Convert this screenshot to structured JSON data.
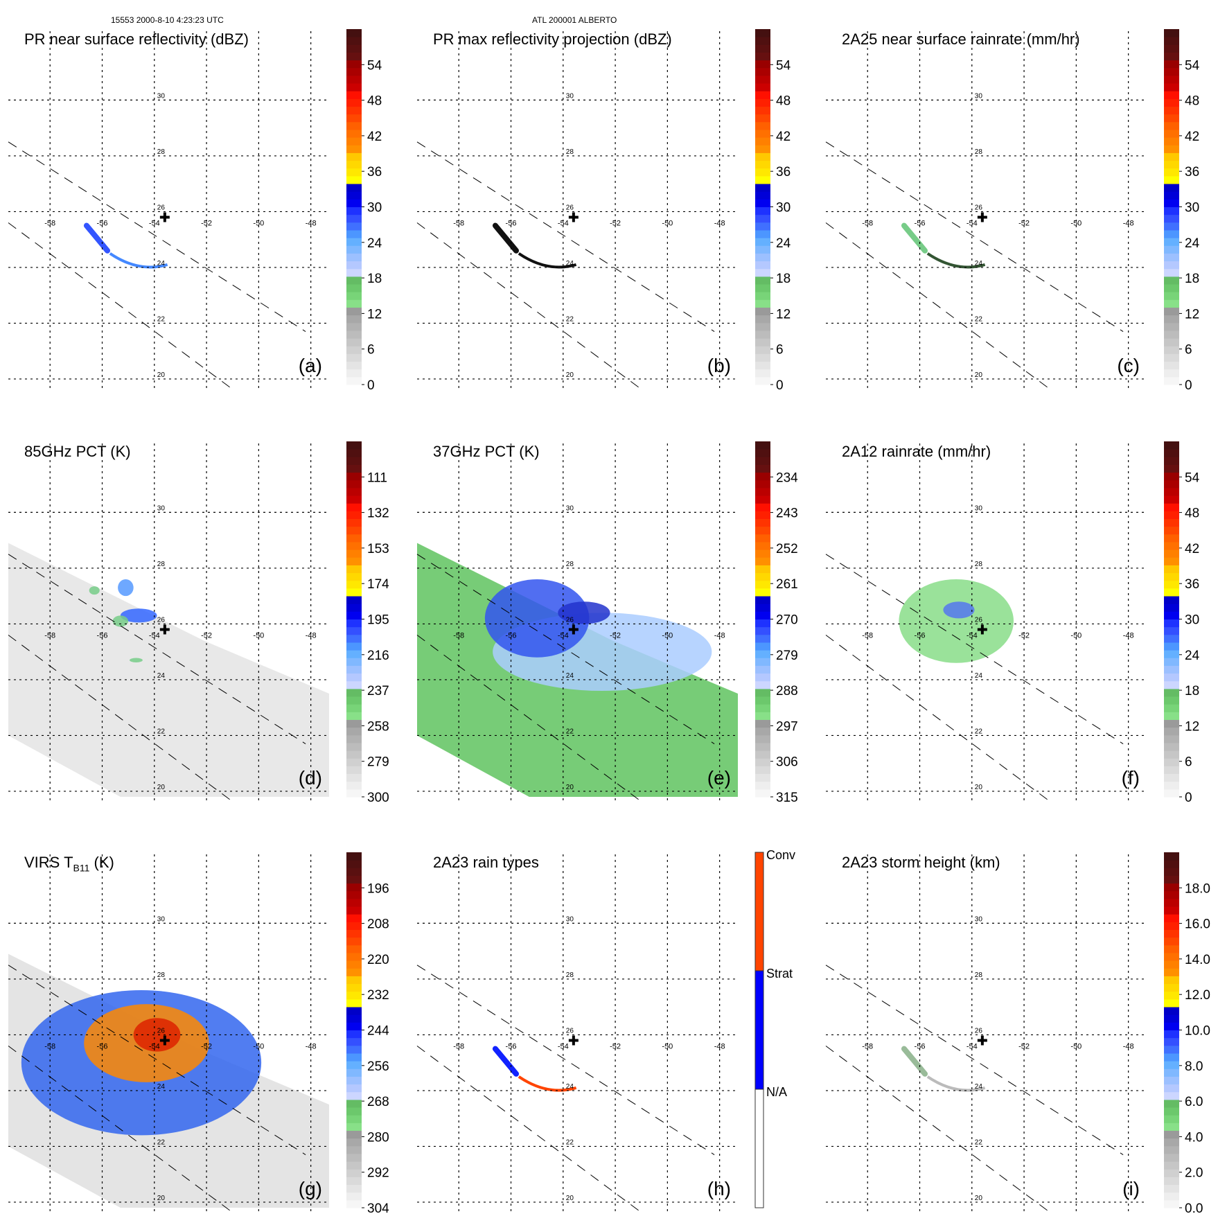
{
  "header": {
    "orbit_time": "15553 2000-8-10 4:23:23 UTC",
    "storm": "ATL 200001 ALBERTO"
  },
  "chart_data": [
    {
      "id": "a",
      "type": "heatmap",
      "panel_label": "(a)",
      "title": "PR near surface reflectivity (dBZ)",
      "colorbar": {
        "kind": "continuous",
        "ticks": [
          "0",
          "6",
          "12",
          "18",
          "24",
          "30",
          "36",
          "42",
          "48",
          "54"
        ],
        "range": [
          0,
          60
        ]
      },
      "swath": "pr",
      "features": [
        {
          "kind": "band",
          "lon0": -56.6,
          "lat0": 25.5,
          "lon1": -55.8,
          "lat1": 24.6,
          "color": "#3355ff"
        },
        {
          "kind": "arc",
          "lon0": -55.7,
          "lat0": 24.5,
          "lon1": -53.5,
          "lat1": 24.1,
          "color": "#4488ff"
        }
      ]
    },
    {
      "id": "b",
      "type": "heatmap",
      "panel_label": "(b)",
      "title": "PR max reflectivity projection (dBZ)",
      "colorbar": {
        "kind": "continuous",
        "ticks": [
          "0",
          "6",
          "12",
          "18",
          "24",
          "30",
          "36",
          "42",
          "48",
          "54"
        ],
        "range": [
          0,
          60
        ]
      },
      "swath": "pr",
      "features": [
        {
          "kind": "band",
          "lon0": -56.6,
          "lat0": 25.5,
          "lon1": -55.8,
          "lat1": 24.6,
          "color": "#111111"
        },
        {
          "kind": "arc",
          "lon0": -55.7,
          "lat0": 24.5,
          "lon1": -53.5,
          "lat1": 24.1,
          "color": "#111111"
        }
      ]
    },
    {
      "id": "c",
      "type": "heatmap",
      "panel_label": "(c)",
      "title": "2A25 near surface rainrate (mm/hr)",
      "colorbar": {
        "kind": "continuous",
        "ticks": [
          "0",
          "6",
          "12",
          "18",
          "24",
          "30",
          "36",
          "42",
          "48",
          "54"
        ],
        "range": [
          0,
          60
        ]
      },
      "swath": "pr",
      "features": [
        {
          "kind": "band",
          "lon0": -56.6,
          "lat0": 25.5,
          "lon1": -55.8,
          "lat1": 24.6,
          "color": "#77cc88"
        },
        {
          "kind": "arc",
          "lon0": -55.7,
          "lat0": 24.5,
          "lon1": -53.5,
          "lat1": 24.1,
          "color": "#335533"
        }
      ]
    },
    {
      "id": "d",
      "type": "heatmap",
      "panel_label": "(d)",
      "title": "85GHz PCT (K)",
      "colorbar": {
        "kind": "continuous",
        "ticks": [
          "300",
          "279",
          "258",
          "237",
          "216",
          "195",
          "174",
          "153",
          "132",
          "111"
        ],
        "range": [
          300,
          90
        ]
      },
      "swath": "tmi",
      "swath_fill": "#e8e8e8",
      "features": [
        {
          "kind": "blob",
          "lon": -54.6,
          "lat": 26.3,
          "rx": 0.7,
          "ry": 0.25,
          "color": "#3366ff"
        },
        {
          "kind": "blob",
          "lon": -55.3,
          "lat": 26.1,
          "rx": 0.3,
          "ry": 0.2,
          "color": "#77cc88"
        },
        {
          "kind": "blob",
          "lon": -55.1,
          "lat": 27.3,
          "rx": 0.3,
          "ry": 0.3,
          "color": "#5599ff"
        },
        {
          "kind": "blob",
          "lon": -56.3,
          "lat": 27.2,
          "rx": 0.2,
          "ry": 0.15,
          "color": "#77cc88"
        },
        {
          "kind": "blob",
          "lon": -54.7,
          "lat": 24.7,
          "rx": 0.25,
          "ry": 0.08,
          "color": "#77cc88"
        }
      ]
    },
    {
      "id": "e",
      "type": "heatmap",
      "panel_label": "(e)",
      "title": "37GHz PCT (K)",
      "colorbar": {
        "kind": "continuous",
        "ticks": [
          "315",
          "306",
          "297",
          "288",
          "279",
          "270",
          "261",
          "252",
          "243",
          "234"
        ],
        "range": [
          315,
          225
        ]
      },
      "swath": "tmi",
      "swath_fill": "#77cc77",
      "features": [
        {
          "kind": "blob",
          "lon": -52.5,
          "lat": 25.0,
          "rx": 4.2,
          "ry": 1.4,
          "color": "#aaccff"
        },
        {
          "kind": "blob",
          "lon": -55.0,
          "lat": 26.2,
          "rx": 2.0,
          "ry": 1.4,
          "color": "#3355ee"
        },
        {
          "kind": "blob",
          "lon": -53.2,
          "lat": 26.4,
          "rx": 1.0,
          "ry": 0.4,
          "color": "#2233cc"
        }
      ]
    },
    {
      "id": "f",
      "type": "heatmap",
      "panel_label": "(f)",
      "title": "2A12 rainrate (mm/hr)",
      "colorbar": {
        "kind": "continuous",
        "ticks": [
          "0",
          "6",
          "12",
          "18",
          "24",
          "30",
          "36",
          "42",
          "48",
          "54"
        ],
        "range": [
          0,
          60
        ]
      },
      "swath": "none",
      "features": [
        {
          "kind": "blob",
          "lon": -54.6,
          "lat": 26.1,
          "rx": 2.2,
          "ry": 1.5,
          "color": "#88dd88"
        },
        {
          "kind": "blob",
          "lon": -54.5,
          "lat": 26.5,
          "rx": 0.6,
          "ry": 0.3,
          "color": "#5577ee"
        }
      ]
    },
    {
      "id": "g",
      "type": "heatmap",
      "panel_label": "(g)",
      "title": "VIRS T",
      "title_sub": "B11",
      "title_suffix": " (K)",
      "colorbar": {
        "kind": "continuous",
        "ticks": [
          "304",
          "292",
          "280",
          "268",
          "256",
          "244",
          "232",
          "220",
          "208",
          "196"
        ],
        "range": [
          304,
          184
        ]
      },
      "swath": "tmi",
      "swath_fill": "#e4e4e4",
      "features": [
        {
          "kind": "blob",
          "lon": -54.5,
          "lat": 25.0,
          "rx": 4.6,
          "ry": 2.6,
          "color": "#3366ee"
        },
        {
          "kind": "blob",
          "lon": -54.3,
          "lat": 25.7,
          "rx": 2.4,
          "ry": 1.4,
          "color": "#ff8800"
        },
        {
          "kind": "blob",
          "lon": -53.9,
          "lat": 26.0,
          "rx": 0.9,
          "ry": 0.6,
          "color": "#dd2200"
        }
      ]
    },
    {
      "id": "h",
      "type": "heatmap",
      "panel_label": "(h)",
      "title": "2A23 rain types",
      "colorbar": {
        "kind": "categorical",
        "labels": [
          "N/A",
          "Strat",
          "Conv"
        ],
        "colors": [
          "#ffffff",
          "#0000ff",
          "#ff4400"
        ]
      },
      "swath": "pr",
      "features": [
        {
          "kind": "band",
          "lon0": -56.6,
          "lat0": 25.5,
          "lon1": -55.8,
          "lat1": 24.6,
          "color": "#1122ff"
        },
        {
          "kind": "arc",
          "lon0": -55.7,
          "lat0": 24.5,
          "lon1": -53.5,
          "lat1": 24.1,
          "color": "#ff4400"
        }
      ]
    },
    {
      "id": "i",
      "type": "heatmap",
      "panel_label": "(i)",
      "title": "2A23 storm height (km)",
      "colorbar": {
        "kind": "continuous",
        "ticks": [
          "0.0",
          "2.0",
          "4.0",
          "6.0",
          "8.0",
          "10.0",
          "12.0",
          "14.0",
          "16.0",
          "18.0"
        ],
        "range": [
          0,
          20
        ]
      },
      "swath": "pr",
      "features": [
        {
          "kind": "band",
          "lon0": -56.6,
          "lat0": 25.5,
          "lon1": -55.8,
          "lat1": 24.6,
          "color": "#99bb99"
        },
        {
          "kind": "arc",
          "lon0": -55.7,
          "lat0": 24.5,
          "lon1": -53.5,
          "lat1": 24.1,
          "color": "#bbbbbb"
        }
      ]
    }
  ],
  "map": {
    "lon_ticks": [
      -58,
      -56,
      -54,
      -52,
      -50,
      -48
    ],
    "lat_ticks": [
      20,
      22,
      24,
      26,
      28,
      30
    ],
    "lon_range": [
      -59.6,
      -47.3
    ],
    "lat_range": [
      19.8,
      31.6
    ],
    "storm_center": {
      "lon": -53.6,
      "lat": 25.8
    }
  },
  "colorbar_palette": [
    "#f6f6f6",
    "#eeeeee",
    "#e4e4e4",
    "#dadada",
    "#d0d0d0",
    "#c6c6c6",
    "#bcbcbc",
    "#b2b2b2",
    "#a8a8a8",
    "#9a9a9a",
    "#88e088",
    "#78d478",
    "#6cc86c",
    "#64bc64",
    "#ccd6ff",
    "#b4c8ff",
    "#9cc0ff",
    "#80b8ff",
    "#64b0ff",
    "#4c96ff",
    "#4070ff",
    "#3450ff",
    "#1e32ff",
    "#0000f0",
    "#0000d8",
    "#0000c8",
    "#ffff00",
    "#ffe800",
    "#ffd800",
    "#ffc800",
    "#ff9000",
    "#ff8000",
    "#ff7000",
    "#ff6000",
    "#ff4800",
    "#ff3400",
    "#ff2000",
    "#ff1000",
    "#cc0000",
    "#bb0000",
    "#aa0000",
    "#990000",
    "#661010",
    "#5a1010",
    "#501010",
    "#441010"
  ]
}
